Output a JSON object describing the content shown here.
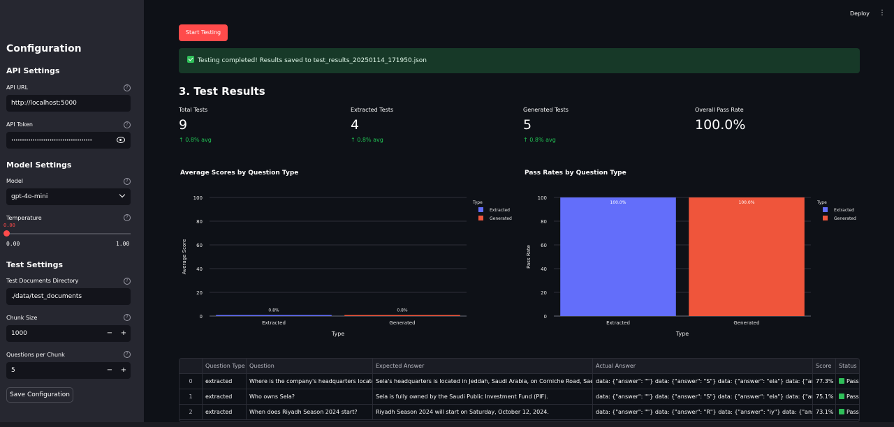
{
  "topbar": {
    "deploy": "Deploy",
    "menu": "⋮"
  },
  "sidebar": {
    "title": "Configuration",
    "api_settings": "API Settings",
    "api_url_label": "API URL",
    "api_url_value": "http://localhost:5000",
    "api_token_label": "API Token",
    "api_token_value": "••••••••••••••••••••••••••••••••••••••",
    "model_settings": "Model Settings",
    "model_label": "Model",
    "model_value": "gpt-4o-mini",
    "temperature_label": "Temperature",
    "temperature_value": "0.00",
    "temperature_min": "0.00",
    "temperature_max": "1.00",
    "test_settings": "Test Settings",
    "docs_dir_label": "Test Documents Directory",
    "docs_dir_value": "./data/test_documents",
    "chunk_size_label": "Chunk Size",
    "chunk_size_value": "1000",
    "qpc_label": "Questions per Chunk",
    "qpc_value": "5",
    "minus": "−",
    "plus": "+",
    "help": "?",
    "save_label": "Save Configuration"
  },
  "main": {
    "start_label": "Start Testing",
    "success_message": "Testing completed! Results saved to test_results_20250114_171950.json",
    "section_title": "3. Test Results",
    "metrics": [
      {
        "label": "Total Tests",
        "value": "9",
        "delta": "↑ 0.8% avg"
      },
      {
        "label": "Extracted Tests",
        "value": "4",
        "delta": "↑ 0.8% avg"
      },
      {
        "label": "Generated Tests",
        "value": "5",
        "delta": "↑ 0.8% avg"
      },
      {
        "label": "Overall Pass Rate",
        "value": "100.0%",
        "delta": ""
      }
    ]
  },
  "colors": {
    "extracted": "#636efa",
    "generated": "#ef553b",
    "accent": "#ff4b4b"
  },
  "chart_data": [
    {
      "type": "bar",
      "title": "Average Scores by Question Type",
      "xlabel": "Type",
      "ylabel": "Average Score",
      "categories": [
        "Extracted",
        "Generated"
      ],
      "values": [
        0.8,
        0.8
      ],
      "data_labels": [
        "0.8%",
        "0.8%"
      ],
      "ylim": [
        0,
        100
      ],
      "yticks": [
        0,
        20,
        40,
        60,
        80,
        100
      ],
      "legend_title": "Type",
      "legend": [
        "Extracted",
        "Generated"
      ]
    },
    {
      "type": "bar",
      "title": "Pass Rates by Question Type",
      "xlabel": "Type",
      "ylabel": "Pass Rate",
      "categories": [
        "Extracted",
        "Generated"
      ],
      "values": [
        100,
        100
      ],
      "data_labels": [
        "100.0%",
        "100.0%"
      ],
      "ylim": [
        0,
        100
      ],
      "yticks": [
        0,
        20,
        40,
        60,
        80,
        100
      ],
      "legend_title": "Type",
      "legend": [
        "Extracted",
        "Generated"
      ]
    }
  ],
  "table": {
    "headers": [
      "",
      "Question Type",
      "Question",
      "Expected Answer",
      "Actual Answer",
      "Score",
      "Status"
    ],
    "rows": [
      [
        "0",
        "extracted",
        "Where is the company's headquarters located?",
        "Sela's headquarters is located in Jeddah, Saudi Arabia, on Corniche Road, Saeed Al-M",
        "data: {\"answer\": \"\"} data: {\"answer\": \"S\"} data: {\"answer\": \"ela\"} data: {\"answer\": \"'s",
        "77.3%",
        "Pass"
      ],
      [
        "1",
        "extracted",
        "Who owns Sela?",
        "Sela is fully owned by the Saudi Public Investment Fund (PIF).",
        "data: {\"answer\": \"\"} data: {\"answer\": \"S\"} data: {\"answer\": \"ela\"} data: {\"answer\": \" i",
        "75.1%",
        "Pass"
      ],
      [
        "2",
        "extracted",
        "When does Riyadh Season 2024 start?",
        "Riyadh Season 2024 will start on Saturday, October 12, 2024.",
        "data: {\"answer\": \"\"} data: {\"answer\": \"R\"} data: {\"answer\": \"iy\"} data: {\"answer\": \"ad",
        "73.1%",
        "Pass"
      ]
    ]
  }
}
